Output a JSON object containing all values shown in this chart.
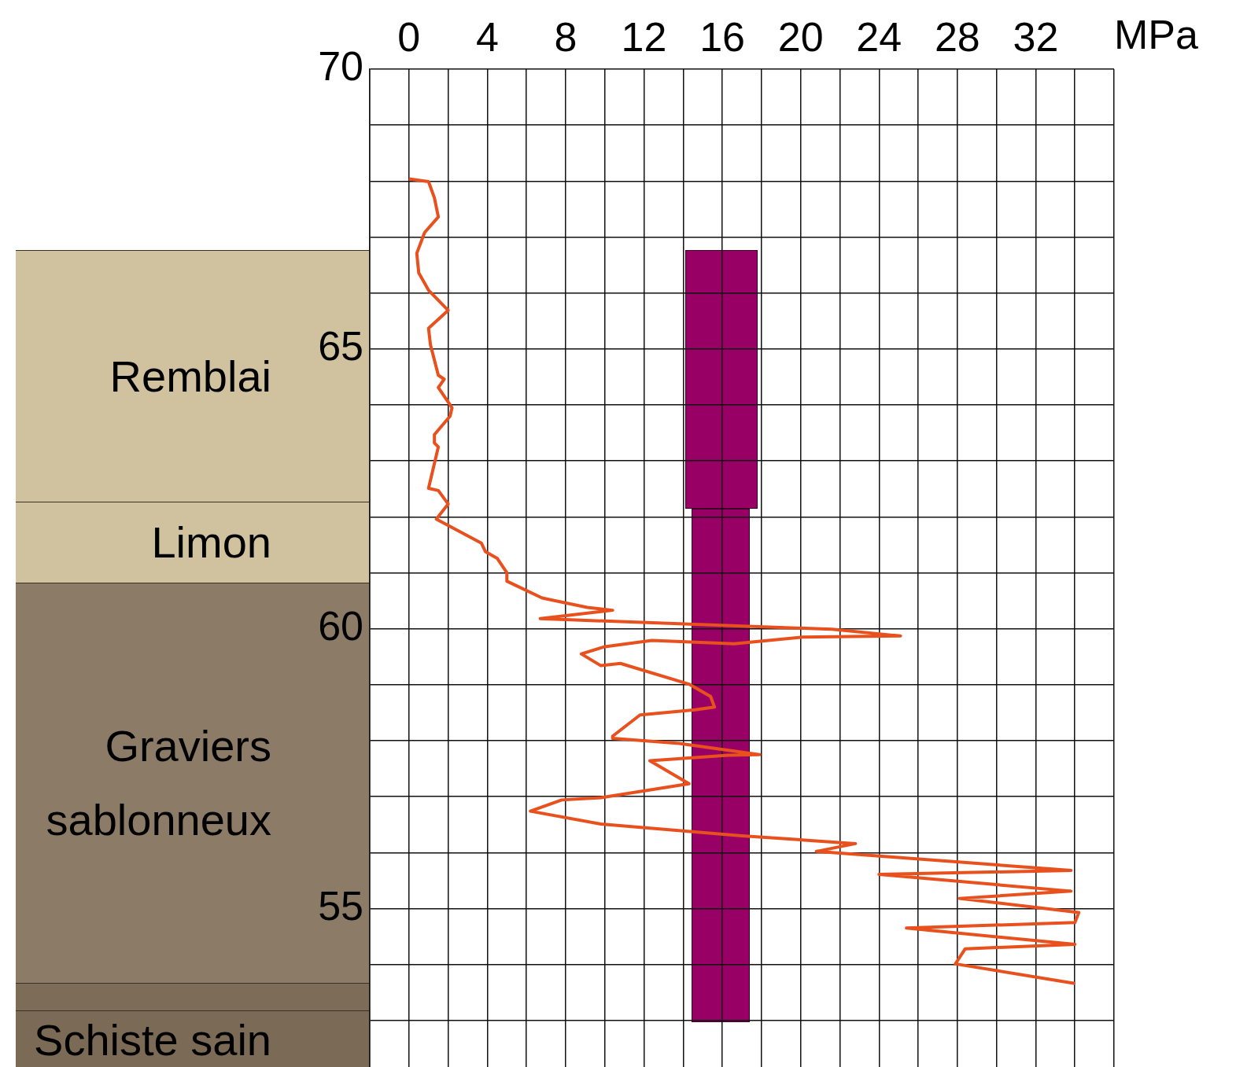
{
  "chart_data": {
    "type": "line",
    "xlabel": "MPa",
    "annotations": [
      "Remblai",
      "Limon",
      "Graviers sablonneux",
      "Schiste sain"
    ],
    "xlim": [
      -2,
      36
    ],
    "xticks": [
      {
        "value": -2,
        "label": null
      },
      0,
      {
        "value": 2,
        "label": null
      },
      4,
      {
        "value": 6,
        "label": null
      },
      8,
      {
        "value": 10,
        "label": null
      },
      12,
      {
        "value": 14,
        "label": null
      },
      16,
      {
        "value": 18,
        "label": null
      },
      20,
      {
        "value": 22,
        "label": null
      },
      24,
      {
        "value": 26,
        "label": null
      },
      28,
      {
        "value": 30,
        "label": null
      },
      32,
      {
        "value": 34,
        "label": null
      },
      {
        "value": 36,
        "label": null
      }
    ],
    "ylim": [
      52.1,
      70
    ],
    "yticks": [
      {
        "value": 53,
        "label": null
      },
      {
        "value": 54,
        "label": null
      },
      55,
      {
        "value": 56,
        "label": null
      },
      {
        "value": 57,
        "label": null
      },
      {
        "value": 58,
        "label": null
      },
      {
        "value": 59,
        "label": null
      },
      60,
      {
        "value": 61,
        "label": null
      },
      {
        "value": 62,
        "label": null
      },
      {
        "value": 63,
        "label": null
      },
      {
        "value": 64,
        "label": null
      },
      65,
      {
        "value": 66,
        "label": null
      },
      {
        "value": 67,
        "label": null
      },
      {
        "value": 68,
        "label": null
      },
      {
        "value": 69,
        "label": null
      },
      70
    ],
    "grid": true,
    "series": [
      {
        "color": "#e8501e",
        "x": [
          0,
          1,
          1.3,
          1.5,
          0.8,
          0.4,
          0.5,
          1,
          2,
          1,
          1.1,
          1.5,
          1.8,
          1.5,
          2.2,
          2.1,
          1.3,
          1.3,
          1.5,
          1,
          1.5,
          2,
          1.4,
          3.7,
          3.9,
          4.5,
          5,
          5,
          6.8,
          9.1,
          10.4,
          6.7,
          21.6,
          25.1,
          20.1,
          16.6,
          12.4,
          10,
          8.8,
          9.8,
          10.8,
          14.3,
          15.4,
          15.6,
          14.6,
          11.8,
          10.4,
          10.4,
          13.8,
          17.9,
          16.3,
          12.3,
          14.3,
          9.8,
          7.8,
          6.2,
          9.8,
          17,
          22.8,
          20.8,
          33.8,
          24,
          33.8,
          28.1,
          34.2,
          34,
          25.4,
          34,
          28.4,
          27.9,
          34
        ],
        "values": [
          68.04,
          67.99,
          67.7,
          67.36,
          67.08,
          66.71,
          66.36,
          66.05,
          65.69,
          65.37,
          65.07,
          64.53,
          64.46,
          64.31,
          63.95,
          63.8,
          63.47,
          63.32,
          63.25,
          62.51,
          62.47,
          62.23,
          61.96,
          61.53,
          61.38,
          61.26,
          61,
          60.85,
          60.55,
          60.38,
          60.33,
          60.18,
          59.99,
          59.87,
          59.85,
          59.73,
          59.79,
          59.68,
          59.55,
          59.34,
          59.38,
          59.01,
          58.79,
          58.6,
          58.55,
          58.46,
          58.08,
          58.04,
          57.95,
          57.75,
          57.74,
          57.64,
          57.23,
          56.98,
          56.94,
          56.74,
          56.51,
          56.3,
          56.16,
          56.02,
          55.68,
          55.61,
          55.31,
          55.18,
          54.93,
          54.75,
          54.65,
          54.36,
          54.28,
          54.01,
          53.66
        ]
      }
    ]
  }
}
